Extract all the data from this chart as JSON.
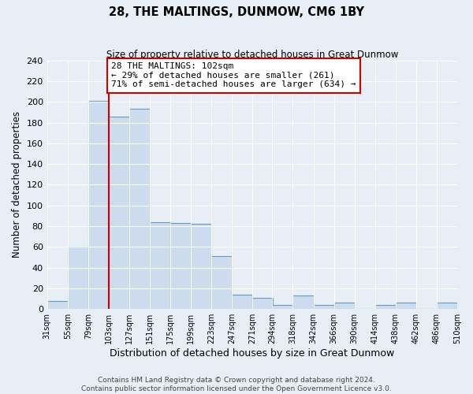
{
  "title": "28, THE MALTINGS, DUNMOW, CM6 1BY",
  "subtitle": "Size of property relative to detached houses in Great Dunmow",
  "xlabel": "Distribution of detached houses by size in Great Dunmow",
  "ylabel": "Number of detached properties",
  "bin_edges": [
    31,
    55,
    79,
    103,
    127,
    151,
    175,
    199,
    223,
    247,
    271,
    294,
    318,
    342,
    366,
    390,
    414,
    438,
    462,
    486,
    510
  ],
  "bin_labels": [
    "31sqm",
    "55sqm",
    "79sqm",
    "103sqm",
    "127sqm",
    "151sqm",
    "175sqm",
    "199sqm",
    "223sqm",
    "247sqm",
    "271sqm",
    "294sqm",
    "318sqm",
    "342sqm",
    "366sqm",
    "390sqm",
    "414sqm",
    "438sqm",
    "462sqm",
    "486sqm",
    "510sqm"
  ],
  "counts": [
    8,
    60,
    201,
    186,
    193,
    84,
    83,
    82,
    51,
    14,
    11,
    4,
    13,
    4,
    6,
    0,
    4,
    6,
    0,
    6
  ],
  "bar_color": "#ccdcee",
  "bar_edge_color": "#6699bb",
  "vline_x": 103,
  "vline_color": "#cc0000",
  "annotation_text": "28 THE MALTINGS: 102sqm\n← 29% of detached houses are smaller (261)\n71% of semi-detached houses are larger (634) →",
  "annotation_box_color": "#ffffff",
  "annotation_box_edge": "#cc0000",
  "ylim": [
    0,
    240
  ],
  "yticks": [
    0,
    20,
    40,
    60,
    80,
    100,
    120,
    140,
    160,
    180,
    200,
    220,
    240
  ],
  "footer1": "Contains HM Land Registry data © Crown copyright and database right 2024.",
  "footer2": "Contains public sector information licensed under the Open Government Licence v3.0.",
  "bg_color": "#e8eef5",
  "plot_bg_color": "#e8eef5",
  "grid_color": "#ffffff"
}
